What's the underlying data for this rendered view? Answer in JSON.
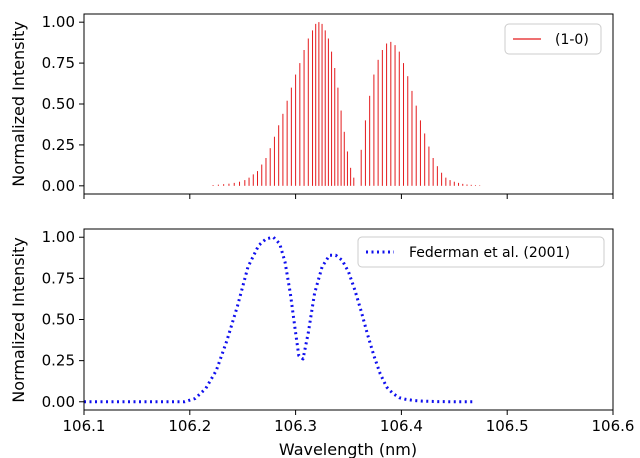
{
  "chart_data": [
    {
      "type": "line",
      "panel": "top",
      "render": "stick-spectrum",
      "ylabel": "Normalized Intensity",
      "xlabel": "",
      "xlim": [
        106.1,
        106.6
      ],
      "ylim": [
        -0.05,
        1.05
      ],
      "yticks": [
        "0.00",
        "0.25",
        "0.50",
        "0.75",
        "1.00"
      ],
      "legend_position": "top-right",
      "series": [
        {
          "name": "(1-0)",
          "color": "#e41a1c",
          "style": "vertical lines",
          "x": [
            106.222,
            106.227,
            106.232,
            106.237,
            106.242,
            106.247,
            106.252,
            106.256,
            106.26,
            106.264,
            106.268,
            106.272,
            106.276,
            106.28,
            106.284,
            106.288,
            106.292,
            106.296,
            106.3,
            106.304,
            106.308,
            106.312,
            106.316,
            106.319,
            106.322,
            106.325,
            106.328,
            106.331,
            106.334,
            106.337,
            106.34,
            106.343,
            106.346,
            106.349,
            106.352,
            106.355,
            106.362,
            106.366,
            106.37,
            106.374,
            106.378,
            106.382,
            106.386,
            106.39,
            106.394,
            106.398,
            106.402,
            106.406,
            106.41,
            106.414,
            106.418,
            106.422,
            106.426,
            106.43,
            106.434,
            106.438,
            106.442,
            106.446,
            106.45,
            106.454,
            106.458,
            106.462,
            106.466,
            106.47,
            106.474
          ],
          "y": [
            0.005,
            0.007,
            0.01,
            0.013,
            0.018,
            0.025,
            0.035,
            0.05,
            0.07,
            0.09,
            0.13,
            0.17,
            0.23,
            0.3,
            0.37,
            0.44,
            0.52,
            0.6,
            0.68,
            0.75,
            0.83,
            0.9,
            0.95,
            0.99,
            1.0,
            0.99,
            0.95,
            0.9,
            0.82,
            0.72,
            0.6,
            0.46,
            0.33,
            0.21,
            0.11,
            0.05,
            0.22,
            0.4,
            0.55,
            0.68,
            0.77,
            0.83,
            0.87,
            0.88,
            0.86,
            0.82,
            0.75,
            0.67,
            0.58,
            0.49,
            0.4,
            0.32,
            0.24,
            0.17,
            0.12,
            0.08,
            0.05,
            0.035,
            0.025,
            0.018,
            0.012,
            0.008,
            0.006,
            0.004,
            0.003
          ]
        }
      ]
    },
    {
      "type": "line",
      "panel": "bottom",
      "xlabel": "Wavelength (nm)",
      "ylabel": "Normalized Intensity",
      "xlim": [
        106.1,
        106.6
      ],
      "ylim": [
        -0.05,
        1.05
      ],
      "xticks": [
        "106.1",
        "106.2",
        "106.3",
        "106.4",
        "106.5",
        "106.6"
      ],
      "yticks": [
        "0.00",
        "0.25",
        "0.50",
        "0.75",
        "1.00"
      ],
      "legend_position": "top-right",
      "series": [
        {
          "name": "Federman et al. (2001)",
          "color": "#1010ee",
          "style": "dotted",
          "x": [
            106.1,
            106.15,
            106.18,
            106.195,
            106.205,
            106.215,
            106.225,
            106.235,
            106.245,
            106.255,
            106.265,
            106.272,
            106.279,
            106.285,
            106.29,
            106.295,
            106.3,
            106.303,
            106.307,
            106.312,
            106.318,
            106.325,
            106.332,
            106.338,
            106.344,
            106.35,
            106.356,
            106.362,
            106.368,
            106.374,
            106.38,
            106.386,
            106.392,
            106.398,
            106.404,
            106.412,
            106.42,
            106.435,
            106.45,
            106.47
          ],
          "y": [
            0.0,
            0.0,
            0.0,
            0.0,
            0.02,
            0.08,
            0.19,
            0.37,
            0.58,
            0.82,
            0.95,
            0.99,
            1.0,
            0.96,
            0.85,
            0.66,
            0.42,
            0.28,
            0.26,
            0.42,
            0.66,
            0.82,
            0.89,
            0.89,
            0.86,
            0.79,
            0.68,
            0.55,
            0.41,
            0.28,
            0.17,
            0.09,
            0.05,
            0.025,
            0.015,
            0.008,
            0.004,
            0.001,
            0.0,
            0.0
          ]
        }
      ]
    }
  ]
}
